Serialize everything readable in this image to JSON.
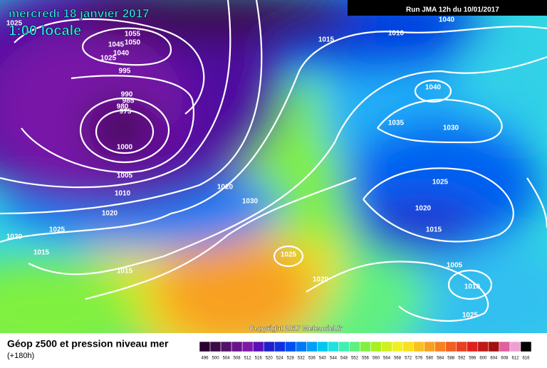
{
  "header": {
    "date": "mercredi 18 janvier 2017",
    "time": "1:00 locale",
    "run": "Run JMA 12h du 10/01/2017"
  },
  "isobar_labels": [
    "1025",
    "1055",
    "1050",
    "1045",
    "1040",
    "1025",
    "995",
    "990",
    "985",
    "980",
    "975",
    "1000",
    "1005",
    "1010",
    "1020",
    "1020",
    "1025",
    "1015",
    "1015",
    "1020",
    "1030",
    "1025",
    "1020",
    "1015",
    "1010",
    "1040",
    "1040",
    "1035",
    "1030",
    "1025",
    "1020",
    "1015",
    "1005",
    "1010",
    "1025"
  ],
  "copyright": "Copyright 2017 Meteociel.fr",
  "legend": {
    "title": "Géop z500 et pression niveau mer",
    "subtitle": "(+180h)",
    "labels": [
      "496",
      "500",
      "504",
      "508",
      "512",
      "516",
      "520",
      "524",
      "528",
      "532",
      "536",
      "540",
      "544",
      "548",
      "552",
      "556",
      "560",
      "564",
      "568",
      "572",
      "576",
      "580",
      "584",
      "588",
      "592",
      "596",
      "600",
      "604",
      "608",
      "612",
      "616"
    ],
    "colors": [
      "#2a0030",
      "#3d0a48",
      "#55106a",
      "#6a148a",
      "#7d18a8",
      "#5a10b8",
      "#2020c8",
      "#1030e0",
      "#0050f0",
      "#0078f8",
      "#00a0f8",
      "#00c8f0",
      "#20e0e0",
      "#40f0b0",
      "#60f080",
      "#80f040",
      "#a8f020",
      "#d0f020",
      "#f0f020",
      "#f8e020",
      "#f8c020",
      "#f8a020",
      "#f88020",
      "#f06020",
      "#e84020",
      "#e02020",
      "#c01818",
      "#a01010",
      "#e060a0",
      "#f0a0d0",
      "#000000"
    ]
  }
}
